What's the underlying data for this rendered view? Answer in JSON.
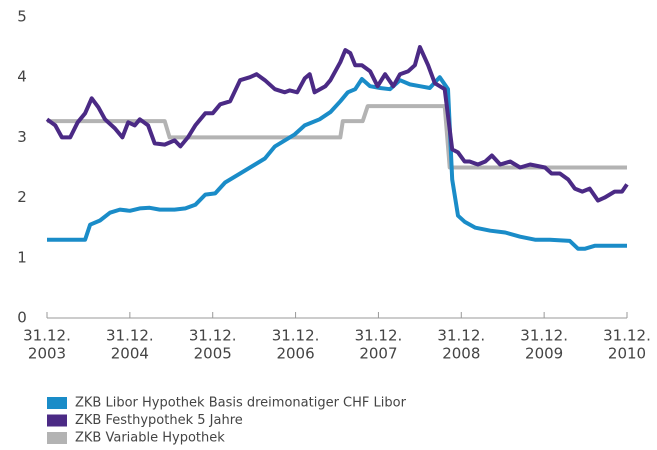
{
  "chart_data": {
    "type": "line",
    "xlim": [
      2003,
      2010
    ],
    "ylim": [
      0,
      5
    ],
    "yticks": [
      0,
      1,
      2,
      3,
      4,
      5
    ],
    "xticks": [
      {
        "value": 2003,
        "label": [
          "31.12.",
          "2003"
        ]
      },
      {
        "value": 2004,
        "label": [
          "31.12.",
          "2004"
        ]
      },
      {
        "value": 2005,
        "label": [
          "31.12.",
          "2005"
        ]
      },
      {
        "value": 2006,
        "label": [
          "31.12.",
          "2006"
        ]
      },
      {
        "value": 2007,
        "label": [
          "31.12.",
          "2007"
        ]
      },
      {
        "value": 2008,
        "label": [
          "31.12.",
          "2008"
        ]
      },
      {
        "value": 2009,
        "label": [
          "31.12.",
          "2009"
        ]
      },
      {
        "value": 2010,
        "label": [
          "31.12.",
          "2010"
        ]
      }
    ],
    "legend": "bottom-left",
    "series": [
      {
        "name": "ZKB Libor Hypothek Basis dreimonatiger CHF Libor",
        "color": "#1a8cc8",
        "x": [
          2003.0,
          2003.46,
          2003.52,
          2003.64,
          2003.76,
          2003.88,
          2004.0,
          2004.12,
          2004.24,
          2004.36,
          2004.54,
          2004.67,
          2004.79,
          2004.91,
          2005.03,
          2005.15,
          2005.33,
          2005.51,
          2005.63,
          2005.75,
          2005.87,
          2005.99,
          2006.11,
          2006.29,
          2006.42,
          2006.54,
          2006.63,
          2006.72,
          2006.8,
          2006.9,
          2007.02,
          2007.14,
          2007.26,
          2007.38,
          2007.5,
          2007.62,
          2007.74,
          2007.84,
          2007.89,
          2007.96,
          2008.04,
          2008.17,
          2008.35,
          2008.53,
          2008.71,
          2008.89,
          2009.07,
          2009.31,
          2009.41,
          2009.49,
          2009.61,
          2009.79,
          2010.0
        ],
        "values": [
          1.3,
          1.3,
          1.55,
          1.62,
          1.75,
          1.8,
          1.78,
          1.82,
          1.83,
          1.8,
          1.8,
          1.82,
          1.88,
          2.05,
          2.07,
          2.25,
          2.4,
          2.55,
          2.65,
          2.85,
          2.95,
          3.05,
          3.2,
          3.3,
          3.42,
          3.6,
          3.75,
          3.8,
          3.97,
          3.85,
          3.82,
          3.8,
          3.95,
          3.88,
          3.85,
          3.82,
          4.0,
          3.8,
          2.3,
          1.7,
          1.6,
          1.5,
          1.45,
          1.42,
          1.35,
          1.3,
          1.3,
          1.28,
          1.15,
          1.15,
          1.2,
          1.2,
          1.2
        ]
      },
      {
        "name": "ZKB Festhypothek 5 Jahre",
        "color": "#4b2a85",
        "x": [
          2003.0,
          2003.1,
          2003.18,
          2003.28,
          2003.37,
          2003.46,
          2003.54,
          2003.62,
          2003.7,
          2003.82,
          2003.91,
          2003.98,
          2004.06,
          2004.12,
          2004.22,
          2004.3,
          2004.42,
          2004.54,
          2004.61,
          2004.7,
          2004.79,
          2004.91,
          2005.0,
          2005.09,
          2005.21,
          2005.33,
          2005.45,
          2005.53,
          2005.63,
          2005.75,
          2005.87,
          2005.93,
          2006.02,
          2006.11,
          2006.17,
          2006.23,
          2006.36,
          2006.42,
          2006.54,
          2006.6,
          2006.66,
          2006.72,
          2006.8,
          2006.9,
          2006.99,
          2007.08,
          2007.18,
          2007.26,
          2007.36,
          2007.44,
          2007.5,
          2007.6,
          2007.68,
          2007.8,
          2007.89,
          2007.96,
          2008.04,
          2008.1,
          2008.2,
          2008.29,
          2008.37,
          2008.47,
          2008.59,
          2008.71,
          2008.83,
          2009.01,
          2009.09,
          2009.19,
          2009.29,
          2009.37,
          2009.46,
          2009.55,
          2009.65,
          2009.73,
          2009.85,
          2009.94,
          2010.0
        ],
        "values": [
          3.3,
          3.2,
          3.0,
          3.0,
          3.25,
          3.4,
          3.65,
          3.5,
          3.3,
          3.15,
          3.0,
          3.25,
          3.2,
          3.3,
          3.2,
          2.9,
          2.88,
          2.95,
          2.85,
          3.0,
          3.2,
          3.4,
          3.4,
          3.55,
          3.6,
          3.95,
          4.0,
          4.05,
          3.95,
          3.8,
          3.75,
          3.78,
          3.75,
          3.98,
          4.05,
          3.75,
          3.85,
          3.95,
          4.25,
          4.45,
          4.4,
          4.2,
          4.2,
          4.1,
          3.85,
          4.05,
          3.85,
          4.05,
          4.1,
          4.2,
          4.5,
          4.2,
          3.9,
          3.8,
          2.8,
          2.75,
          2.6,
          2.6,
          2.55,
          2.6,
          2.7,
          2.55,
          2.6,
          2.5,
          2.55,
          2.5,
          2.4,
          2.4,
          2.3,
          2.15,
          2.1,
          2.15,
          1.95,
          2.0,
          2.1,
          2.1,
          2.22
        ]
      },
      {
        "name": "ZKB Variable Hypothek",
        "color": "#b3b3b3",
        "x": [
          2003.0,
          2004.42,
          2004.48,
          2006.54,
          2006.57,
          2006.81,
          2006.87,
          2007.8,
          2007.86,
          2010.0
        ],
        "values": [
          3.27,
          3.27,
          3.0,
          3.0,
          3.27,
          3.27,
          3.52,
          3.52,
          2.5,
          2.5
        ]
      }
    ]
  }
}
